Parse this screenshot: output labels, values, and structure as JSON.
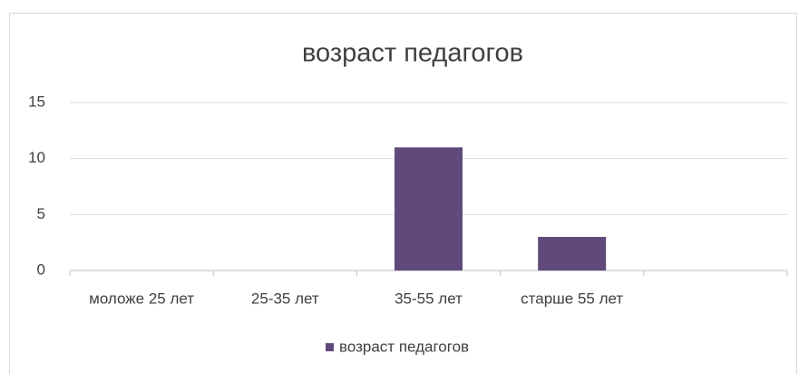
{
  "chart_data": {
    "type": "bar",
    "title": "возраст педагогов",
    "categories": [
      "моложе 25 лет",
      "25-35 лет",
      "35-55 лет",
      "старше 55 лет",
      null
    ],
    "series": [
      {
        "name": "возраст педагогов",
        "color": "#604a7b",
        "values": [
          0,
          0,
          11,
          3,
          null
        ]
      }
    ],
    "ylim": [
      0,
      15
    ],
    "yticks": [
      0,
      5,
      10,
      15
    ],
    "grid": true,
    "legend": "bottom"
  }
}
